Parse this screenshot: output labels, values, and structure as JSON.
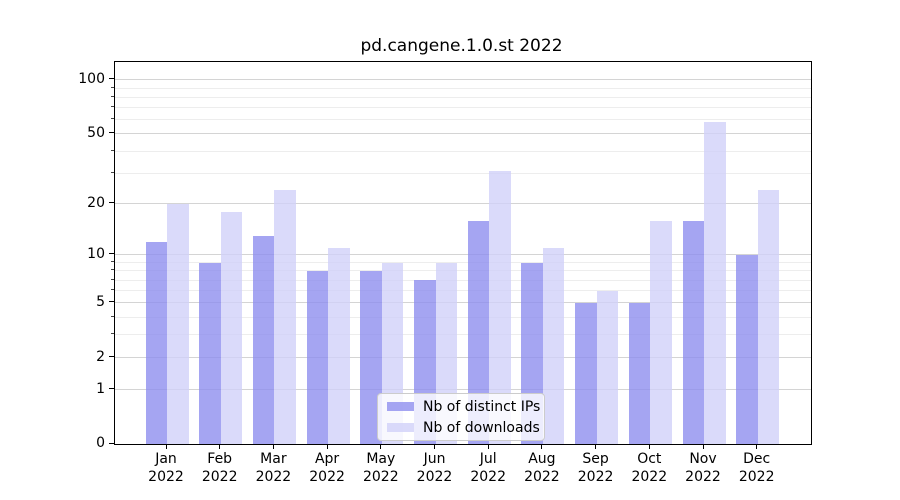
{
  "figure": {
    "background": "#ffffff",
    "axis_color": "#000000",
    "major_grid_color": "#d4d4d4",
    "minor_grid_color": "#ededed"
  },
  "chart_data": {
    "type": "bar",
    "title": "pd.cangene.1.0.st 2022",
    "categories": [
      "Jan 2022",
      "Feb 2022",
      "Mar 2022",
      "Apr 2022",
      "May 2022",
      "Jun 2022",
      "Jul 2022",
      "Aug 2022",
      "Sep 2022",
      "Oct 2022",
      "Nov 2022",
      "Dec 2022"
    ],
    "series": [
      {
        "name": "Nb of distinct IPs",
        "color": "#a6a6f0",
        "fill": "rgba(140,140,238,0.78)",
        "values": [
          12,
          9,
          13,
          8,
          8,
          7,
          16,
          9,
          5,
          5,
          16,
          10
        ]
      },
      {
        "name": "Nb of downloads",
        "color": "#d9d9f8",
        "fill": "rgba(208,208,248,0.78)",
        "values": [
          20,
          18,
          24,
          11,
          9,
          9,
          31,
          11,
          6,
          16,
          58,
          24
        ]
      }
    ],
    "y_axis": {
      "scale": "log10(1+y)",
      "major_ticks": [
        0,
        1,
        2,
        5,
        10,
        20,
        50,
        100
      ],
      "minor_gridlines": [
        3,
        4,
        6,
        7,
        8,
        9,
        30,
        40,
        60,
        70,
        80,
        90
      ],
      "ylim": [
        0,
        126
      ]
    },
    "grid": true,
    "legend_position": "inside lower center",
    "bar_layout": "grouped, two bars per month"
  },
  "legend": {
    "items": [
      {
        "label": "Nb of distinct IPs"
      },
      {
        "label": "Nb of downloads"
      }
    ]
  }
}
